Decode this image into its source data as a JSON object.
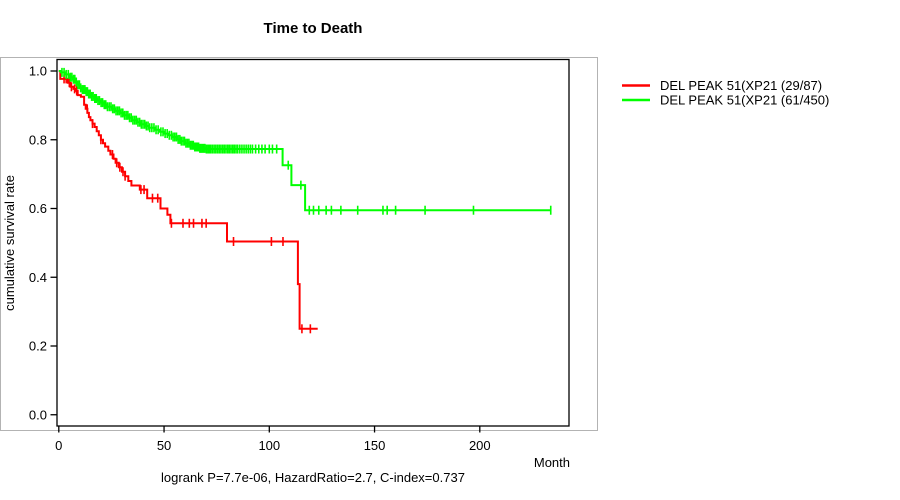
{
  "figure": {
    "title": "Time to Death",
    "x_axis_label": "Month",
    "y_axis_label": "cumulative survival rate",
    "annotation": "logrank P=7.7e-06, HazardRatio=2.7, C-index=0.737"
  },
  "legend": {
    "items": [
      {
        "label": "DEL PEAK 51(XP21 (29/87)",
        "color": "#ff0000"
      },
      {
        "label": "DEL PEAK 51(XP21 (61/450)",
        "color": "#00ff00"
      }
    ]
  },
  "chart_data": {
    "type": "line",
    "subtype": "kaplan-meier-survival-step",
    "title": "Time to Death",
    "xlabel": "Month",
    "ylabel": "cumulative survival rate",
    "annotation": "logrank P=7.7e-06, HazardRatio=2.7, C-index=0.737",
    "xlim": [
      0,
      242
    ],
    "ylim": [
      0,
      1
    ],
    "xticks": [
      0,
      50,
      100,
      150,
      200
    ],
    "xtick_labels": [
      "0",
      "50",
      "100",
      "150",
      "200"
    ],
    "yticks": [
      0,
      0.2,
      0.4,
      0.6,
      0.8,
      1
    ],
    "ytick_labels": [
      "0.0",
      "0.2",
      "0.4",
      "0.6",
      "0.8",
      "1.0"
    ],
    "grid": false,
    "legend_position": "right-outside",
    "series": [
      {
        "name": "DEL PEAK 51(XP21 (29/87)",
        "color": "#ff0000",
        "events_over_n": "29/87",
        "end_month": 123,
        "steps": [
          [
            0,
            1.0
          ],
          [
            0.7,
            0.977
          ],
          [
            4.3,
            0.966
          ],
          [
            5.5,
            0.954
          ],
          [
            7,
            0.948
          ],
          [
            8,
            0.942
          ],
          [
            9,
            0.93
          ],
          [
            10.5,
            0.925
          ],
          [
            12,
            0.902
          ],
          [
            12.8,
            0.89
          ],
          [
            13.6,
            0.878
          ],
          [
            14.3,
            0.866
          ],
          [
            15,
            0.857
          ],
          [
            16,
            0.847
          ],
          [
            17,
            0.837
          ],
          [
            18,
            0.825
          ],
          [
            19,
            0.813
          ],
          [
            20,
            0.8
          ],
          [
            21,
            0.79
          ],
          [
            22,
            0.78
          ],
          [
            23.5,
            0.768
          ],
          [
            24.5,
            0.757
          ],
          [
            26,
            0.745
          ],
          [
            27,
            0.733
          ],
          [
            28.5,
            0.72
          ],
          [
            30,
            0.707
          ],
          [
            31.5,
            0.694
          ],
          [
            33,
            0.68
          ],
          [
            34.5,
            0.667
          ],
          [
            38.5,
            0.655
          ],
          [
            42,
            0.63
          ],
          [
            48.3,
            0.6
          ],
          [
            51.6,
            0.582
          ],
          [
            53,
            0.557
          ],
          [
            79.9,
            0.504
          ],
          [
            113.6,
            0.38
          ],
          [
            114.4,
            0.25
          ]
        ],
        "censor_months": [
          2.5,
          3.5,
          5,
          6,
          7.5,
          8.5,
          13.5,
          16,
          20,
          25.5,
          27.5,
          29,
          30.5,
          31.5,
          39,
          40.5,
          44.5,
          47,
          53.5,
          59,
          62,
          64,
          68,
          70,
          83,
          101,
          106.5,
          115.5,
          119.5
        ]
      },
      {
        "name": "DEL PEAK 51(XP21 (61/450)",
        "color": "#00ff00",
        "events_over_n": "61/450",
        "end_month": 233.7,
        "steps": [
          [
            0,
            1.0
          ],
          [
            1,
            0.996
          ],
          [
            3,
            0.99
          ],
          [
            5,
            0.982
          ],
          [
            6.5,
            0.976
          ],
          [
            8,
            0.968
          ],
          [
            9,
            0.96
          ],
          [
            10,
            0.951
          ],
          [
            11,
            0.946
          ],
          [
            12.5,
            0.94
          ],
          [
            14,
            0.933
          ],
          [
            15.5,
            0.926
          ],
          [
            17,
            0.92
          ],
          [
            18.5,
            0.914
          ],
          [
            20,
            0.908
          ],
          [
            21.5,
            0.902
          ],
          [
            23,
            0.896
          ],
          [
            25,
            0.89
          ],
          [
            27,
            0.884
          ],
          [
            29,
            0.878
          ],
          [
            31,
            0.871
          ],
          [
            33,
            0.864
          ],
          [
            35,
            0.857
          ],
          [
            37,
            0.851
          ],
          [
            39,
            0.845
          ],
          [
            41,
            0.84
          ],
          [
            43,
            0.835
          ],
          [
            45.5,
            0.829
          ],
          [
            48,
            0.823
          ],
          [
            50,
            0.818
          ],
          [
            52,
            0.813
          ],
          [
            54,
            0.808
          ],
          [
            56,
            0.801
          ],
          [
            58,
            0.796
          ],
          [
            60,
            0.79
          ],
          [
            62,
            0.784
          ],
          [
            64.5,
            0.779
          ],
          [
            67,
            0.775
          ],
          [
            69.5,
            0.773
          ],
          [
            106.3,
            0.726
          ],
          [
            110.5,
            0.668
          ],
          [
            117,
            0.595
          ]
        ],
        "censor_months": [
          1.5,
          2.5,
          3.5,
          4.5,
          5.5,
          6.2,
          7,
          7.6,
          8.3,
          9.1,
          9.8,
          10.4,
          11.2,
          11.8,
          12.4,
          13,
          13.6,
          14.2,
          14.9,
          15.6,
          16.3,
          17.1,
          17.8,
          18.6,
          19.3,
          20.1,
          20.8,
          21.6,
          22.3,
          23.1,
          24,
          24.8,
          25.6,
          26.4,
          27.2,
          28,
          28.8,
          29.6,
          30.4,
          31.2,
          32,
          32.8,
          33.6,
          34.4,
          35.2,
          36,
          36.8,
          37.6,
          38.4,
          39.2,
          40,
          40.8,
          41.6,
          42.4,
          43.2,
          44.2,
          45.2,
          46.2,
          47.2,
          48.5,
          49.5,
          50.5,
          51.5,
          52.5,
          53.5,
          54.3,
          55.1,
          55.9,
          56.7,
          57.5,
          58.2,
          59,
          59.7,
          60.4,
          61.1,
          61.8,
          62.5,
          63.2,
          63.9,
          64.6,
          65.2,
          65.8,
          66.4,
          67,
          67.6,
          68.2,
          68.8,
          69.4,
          70.1,
          70.8,
          71.5,
          72.2,
          73,
          73.8,
          74.6,
          75.4,
          76.2,
          77,
          77.8,
          78.6,
          79.4,
          80.2,
          81,
          81.8,
          82.6,
          83.4,
          84.2,
          85,
          86,
          87,
          88,
          89,
          90,
          91,
          92,
          93.5,
          95,
          96.5,
          98,
          100,
          101.5,
          103.5,
          109,
          115,
          119,
          121,
          123.5,
          127,
          129.5,
          134,
          142,
          154,
          156,
          160,
          174,
          197,
          233.7
        ]
      }
    ]
  }
}
